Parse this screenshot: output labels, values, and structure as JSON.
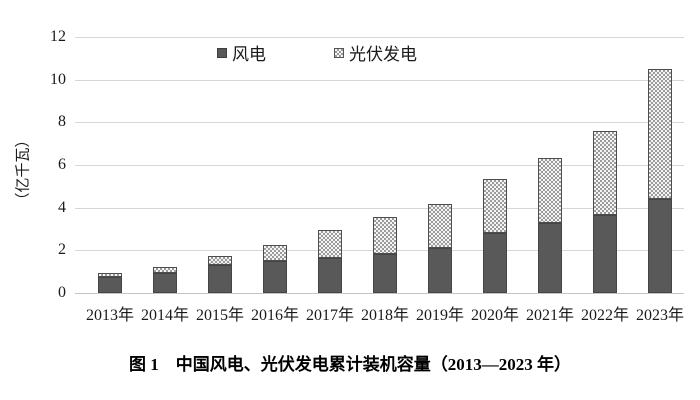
{
  "figure": {
    "caption": "图 1　中国风电、光伏发电累计装机容量（2013—2023 年）"
  },
  "legend": {
    "wind_label": "风电",
    "pv_label": "光伏发电"
  },
  "colors": {
    "wind_fill": "#595959",
    "wind_border": "#454545",
    "pv_pattern_fg": "#9b9b9b",
    "pv_pattern_bg": "#f4f4f4",
    "pv_border": "#4d4d4d",
    "gridline": "#d6d6d6",
    "text": "#1a1a1a"
  },
  "chart_data": {
    "type": "bar",
    "stacked": true,
    "title": "",
    "xlabel": "",
    "ylabel": "（亿千瓦）",
    "ylim": [
      0,
      12
    ],
    "ytick_step": 2,
    "yticks": [
      0,
      2,
      4,
      6,
      8,
      10,
      12
    ],
    "grid": true,
    "legend_position": "top",
    "categories": [
      "2013年",
      "2014年",
      "2015年",
      "2016年",
      "2017年",
      "2018年",
      "2019年",
      "2020年",
      "2021年",
      "2022年",
      "2023年"
    ],
    "series": [
      {
        "name": "风电",
        "style": "solid-dark-gray",
        "values": [
          0.77,
          0.96,
          1.29,
          1.49,
          1.64,
          1.84,
          2.1,
          2.82,
          3.28,
          3.65,
          4.41
        ]
      },
      {
        "name": "光伏发电",
        "style": "checker-pattern",
        "values": [
          0.19,
          0.28,
          0.43,
          0.77,
          1.3,
          1.74,
          2.04,
          2.53,
          3.06,
          3.93,
          6.09
        ]
      }
    ],
    "totals": [
      0.96,
      1.24,
      1.72,
      2.26,
      2.94,
      3.58,
      4.14,
      5.35,
      6.34,
      7.58,
      10.5
    ]
  }
}
